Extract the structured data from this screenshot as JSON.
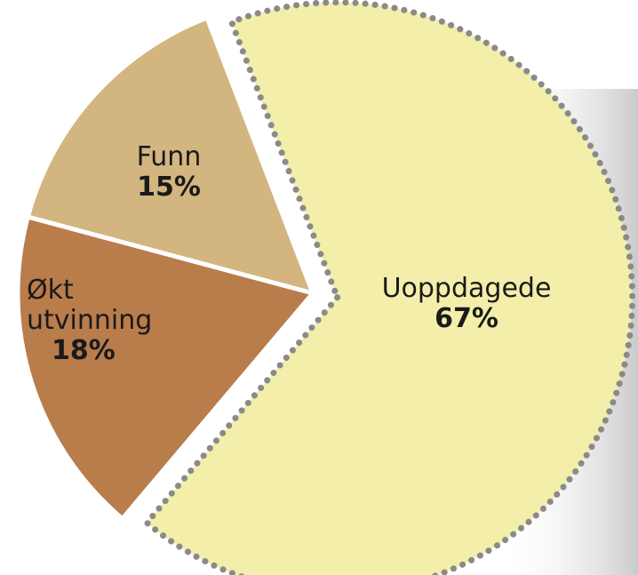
{
  "chart_data": {
    "type": "pie",
    "categories": [
      "Funn",
      "Økt utvinning",
      "Uoppdagede"
    ],
    "values": [
      15,
      18,
      67
    ],
    "value_labels": [
      "15%",
      "18%",
      "67%"
    ],
    "colors": [
      "#d3b580",
      "#b97c4b",
      "#f3eeaa"
    ]
  }
}
